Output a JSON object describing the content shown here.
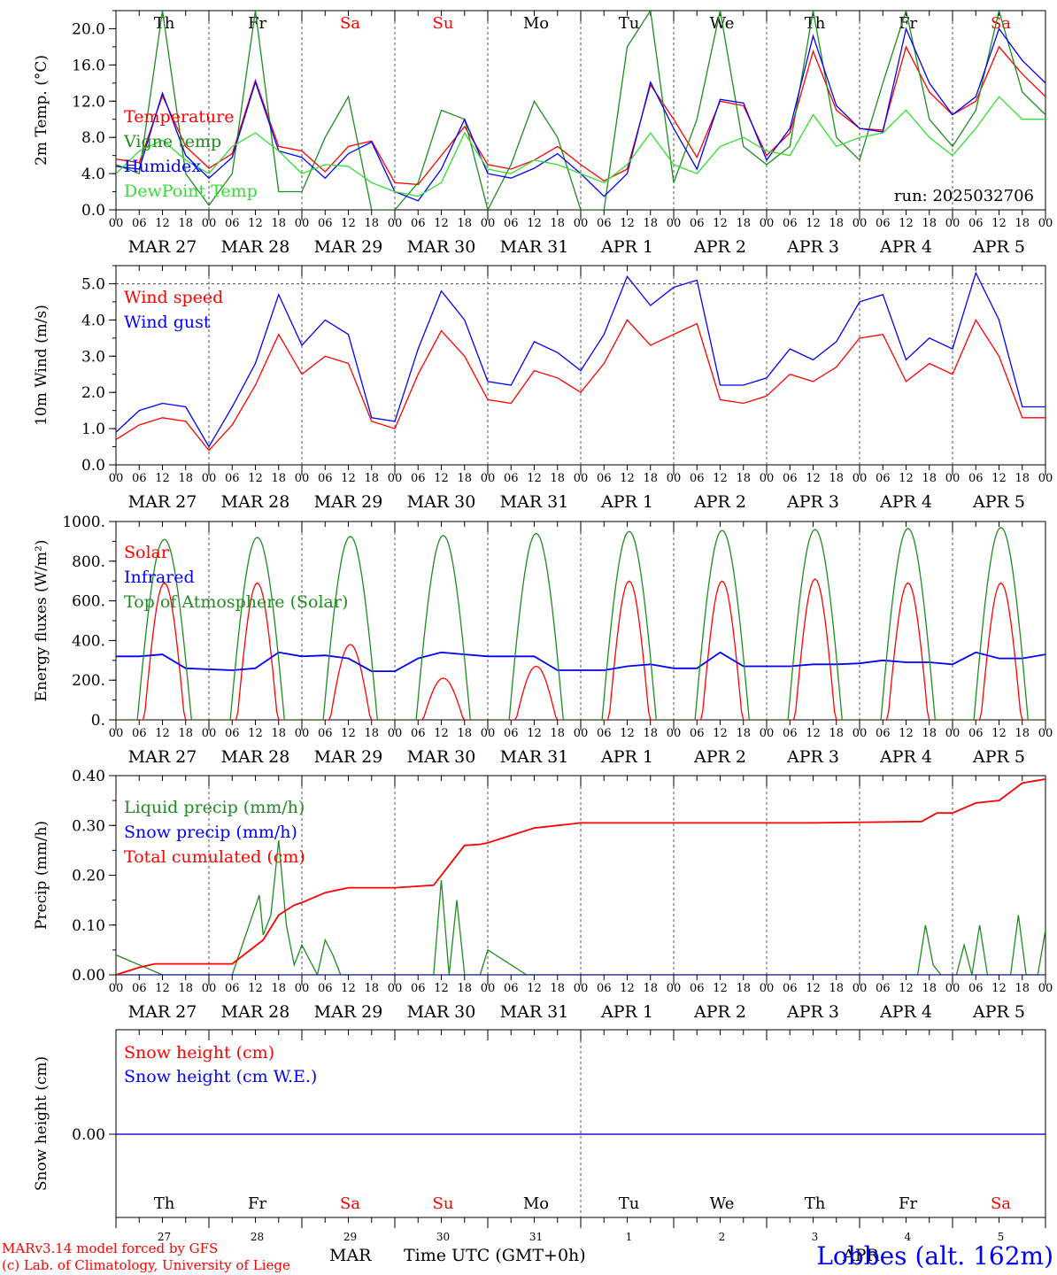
{
  "footer": {
    "model_line": "MARv3.14 model forced by GFS",
    "copyright_line": "(c) Lab. of Climatology, University of Liege",
    "month_label": "MAR",
    "month_label2": "APR",
    "xaxis_title": "Time UTC (GMT+0h)",
    "station": "Lobbes (alt. 162m)"
  },
  "colors": {
    "red": "#ff0000",
    "green": "#1f8c1f",
    "blue": "#0000ff",
    "lightgreen": "#33dd33",
    "grid": "#555555"
  },
  "time_axis": {
    "hour_ticks": [
      "00",
      "06",
      "12",
      "18"
    ],
    "day_labels": [
      "MAR 27",
      "MAR 28",
      "MAR 29",
      "MAR 30",
      "MAR 31",
      "APR  1",
      "APR  2",
      "APR  3",
      "APR  4",
      "APR  5"
    ],
    "weekdays": [
      {
        "label": "Th",
        "color": "#000000"
      },
      {
        "label": "Fr",
        "color": "#000000"
      },
      {
        "label": "Sa",
        "color": "#ff0000"
      },
      {
        "label": "Su",
        "color": "#ff0000"
      },
      {
        "label": "Mo",
        "color": "#000000"
      },
      {
        "label": "Tu",
        "color": "#000000"
      },
      {
        "label": "We",
        "color": "#000000"
      },
      {
        "label": "Th",
        "color": "#000000"
      },
      {
        "label": "Fr",
        "color": "#000000"
      },
      {
        "label": "Sa",
        "color": "#ff0000"
      }
    ],
    "day_numbers": [
      "27",
      "28",
      "29",
      "30",
      "31",
      "1",
      "2",
      "3",
      "4",
      "5"
    ]
  },
  "chart_data": [
    {
      "type": "line",
      "ylabel": "2m Temp. (°C)",
      "ylim": [
        0,
        22
      ],
      "yticks": [
        "0.0",
        "4.0",
        "8.0",
        "12.0",
        "16.0",
        "20.0"
      ],
      "ytick_values": [
        0,
        4,
        8,
        12,
        16,
        20
      ],
      "annotation": "run: 2025032706",
      "x_unit": "hours since MAR 27 00 UTC",
      "series": [
        {
          "name": "Temperature",
          "color": "#ff0000",
          "x": [
            0,
            6,
            12,
            18,
            24,
            30,
            36,
            42,
            48,
            54,
            60,
            66,
            72,
            78,
            84,
            90,
            96,
            102,
            108,
            114,
            120,
            126,
            132,
            138,
            144,
            150,
            156,
            162,
            168,
            174,
            180,
            186,
            192,
            198,
            204,
            210,
            216,
            222,
            228,
            234,
            240
          ],
          "y": [
            5.6,
            5.2,
            12.6,
            7.0,
            4.6,
            6.2,
            14.3,
            7.0,
            6.5,
            4.2,
            7.0,
            7.6,
            3.0,
            2.8,
            6.0,
            9.2,
            5.0,
            4.5,
            5.5,
            7.0,
            5.0,
            3.2,
            4.5,
            13.8,
            10.0,
            5.8,
            12.0,
            11.5,
            6.0,
            8.5,
            17.5,
            11.0,
            9.0,
            8.8,
            18.0,
            13.0,
            10.5,
            12.0,
            18.0,
            15.0,
            12.5
          ]
        },
        {
          "name": "Vigne temp",
          "color": "#1f8c1f",
          "x": [
            0,
            6,
            12,
            18,
            24,
            30,
            36,
            42,
            48,
            54,
            60,
            66,
            72,
            78,
            84,
            90,
            96,
            102,
            108,
            114,
            120,
            126,
            132,
            138,
            144,
            150,
            156,
            162,
            168,
            174,
            180,
            186,
            192,
            198,
            204,
            210,
            216,
            222,
            228,
            234,
            240
          ],
          "y": [
            5.0,
            4.0,
            22.0,
            4.0,
            0.5,
            4.0,
            22.0,
            2.0,
            2.0,
            8.0,
            12.5,
            0.0,
            0.0,
            3.0,
            11.0,
            10.0,
            0.0,
            5.0,
            12.0,
            8.0,
            0.0,
            0.0,
            18.0,
            22.0,
            3.0,
            10.0,
            22.0,
            7.0,
            5.0,
            7.0,
            22.0,
            8.0,
            5.5,
            14.0,
            22.0,
            10.0,
            7.0,
            11.0,
            22.0,
            13.0,
            10.5
          ]
        },
        {
          "name": "Humidex",
          "color": "#0000ff",
          "x": [
            0,
            6,
            12,
            18,
            24,
            30,
            36,
            42,
            48,
            54,
            60,
            66,
            72,
            78,
            84,
            90,
            96,
            102,
            108,
            114,
            120,
            126,
            132,
            138,
            144,
            150,
            156,
            162,
            168,
            174,
            180,
            186,
            192,
            198,
            204,
            210,
            216,
            222,
            228,
            234,
            240
          ],
          "y": [
            4.8,
            4.5,
            12.9,
            6.0,
            3.5,
            5.8,
            14.1,
            6.5,
            5.8,
            3.5,
            6.2,
            7.5,
            2.0,
            1.0,
            4.5,
            10.0,
            4.0,
            3.5,
            4.6,
            6.2,
            4.0,
            1.5,
            4.0,
            14.1,
            9.0,
            4.5,
            12.2,
            11.8,
            5.5,
            9.0,
            19.2,
            11.5,
            9.0,
            8.6,
            20.0,
            14.0,
            10.5,
            12.5,
            20.0,
            16.5,
            14.0
          ]
        },
        {
          "name": "DewPoint Temp",
          "color": "#33dd33",
          "x": [
            0,
            6,
            12,
            18,
            24,
            30,
            36,
            42,
            48,
            54,
            60,
            66,
            72,
            78,
            84,
            90,
            96,
            102,
            108,
            114,
            120,
            126,
            132,
            138,
            144,
            150,
            156,
            162,
            168,
            174,
            180,
            186,
            192,
            198,
            204,
            210,
            216,
            222,
            228,
            234,
            240
          ],
          "y": [
            4.0,
            6.5,
            7.7,
            5.5,
            4.0,
            7.0,
            8.5,
            6.5,
            4.0,
            5.0,
            4.8,
            3.0,
            2.0,
            1.5,
            3.0,
            8.5,
            4.5,
            4.0,
            5.5,
            5.0,
            4.0,
            3.0,
            5.0,
            8.5,
            5.0,
            4.0,
            7.0,
            8.0,
            6.5,
            6.0,
            10.5,
            7.0,
            8.0,
            8.5,
            11.0,
            8.0,
            6.0,
            9.0,
            12.5,
            10.0,
            10.0
          ]
        }
      ]
    },
    {
      "type": "line",
      "ylabel": "10m Wind (m/s)",
      "ylim": [
        0,
        5.5
      ],
      "yticks": [
        "0.0",
        "1.0",
        "2.0",
        "3.0",
        "4.0",
        "5.0"
      ],
      "ytick_values": [
        0,
        1,
        2,
        3,
        4,
        5
      ],
      "reference_line": 5.0,
      "series": [
        {
          "name": "Wind speed",
          "color": "#ff0000",
          "x": [
            0,
            6,
            12,
            18,
            24,
            30,
            36,
            42,
            48,
            54,
            60,
            66,
            72,
            78,
            84,
            90,
            96,
            102,
            108,
            114,
            120,
            126,
            132,
            138,
            144,
            150,
            156,
            162,
            168,
            174,
            180,
            186,
            192,
            198,
            204,
            210,
            216,
            222,
            228,
            234,
            240
          ],
          "y": [
            0.7,
            1.1,
            1.3,
            1.2,
            0.4,
            1.1,
            2.2,
            3.6,
            2.5,
            3.0,
            2.8,
            1.2,
            1.0,
            2.5,
            3.7,
            3.0,
            1.8,
            1.7,
            2.6,
            2.4,
            2.0,
            2.8,
            4.0,
            3.3,
            3.6,
            3.9,
            1.8,
            1.7,
            1.9,
            2.5,
            2.3,
            2.7,
            3.5,
            3.6,
            2.3,
            2.8,
            2.5,
            4.0,
            3.0,
            1.3,
            1.3
          ]
        },
        {
          "name": "Wind gust",
          "color": "#0000ff",
          "x": [
            0,
            6,
            12,
            18,
            24,
            30,
            36,
            42,
            48,
            54,
            60,
            66,
            72,
            78,
            84,
            90,
            96,
            102,
            108,
            114,
            120,
            126,
            132,
            138,
            144,
            150,
            156,
            162,
            168,
            174,
            180,
            186,
            192,
            198,
            204,
            210,
            216,
            222,
            228,
            234,
            240
          ],
          "y": [
            0.9,
            1.5,
            1.7,
            1.6,
            0.5,
            1.6,
            2.8,
            4.7,
            3.3,
            4.0,
            3.6,
            1.3,
            1.2,
            3.2,
            4.8,
            4.0,
            2.3,
            2.2,
            3.4,
            3.1,
            2.6,
            3.6,
            5.2,
            4.4,
            4.9,
            5.1,
            2.2,
            2.2,
            2.4,
            3.2,
            2.9,
            3.4,
            4.5,
            4.7,
            2.9,
            3.5,
            3.2,
            5.3,
            4.0,
            1.6,
            1.6
          ]
        }
      ]
    },
    {
      "type": "line",
      "ylabel": "Energy fluxes (W/m²)",
      "ylim": [
        0,
        1000
      ],
      "yticks": [
        "0.",
        "200.",
        "400.",
        "600.",
        "800.",
        "1000."
      ],
      "ytick_values": [
        0,
        200,
        400,
        600,
        800,
        1000
      ],
      "series": [
        {
          "name": "Solar",
          "color": "#ff0000",
          "peaks": [
            690,
            690,
            380,
            210,
            270,
            700,
            700,
            710,
            690,
            690
          ]
        },
        {
          "name": "Infrared",
          "color": "#0000ff",
          "x": [
            0,
            6,
            12,
            18,
            24,
            30,
            36,
            42,
            48,
            54,
            60,
            66,
            72,
            78,
            84,
            90,
            96,
            102,
            108,
            114,
            120,
            126,
            132,
            138,
            144,
            150,
            156,
            162,
            168,
            174,
            180,
            186,
            192,
            198,
            204,
            210,
            216,
            222,
            228,
            234,
            240
          ],
          "y": [
            320,
            320,
            330,
            260,
            255,
            250,
            260,
            340,
            320,
            325,
            310,
            245,
            245,
            310,
            340,
            330,
            320,
            320,
            320,
            250,
            250,
            250,
            270,
            280,
            260,
            260,
            340,
            270,
            270,
            270,
            280,
            280,
            285,
            300,
            290,
            290,
            280,
            340,
            310,
            310,
            330
          ]
        },
        {
          "name": "Top of Atmosphere (Solar)",
          "color": "#1f8c1f",
          "peaks": [
            910,
            920,
            925,
            930,
            940,
            950,
            955,
            960,
            965,
            970
          ]
        }
      ]
    },
    {
      "type": "line",
      "ylabel": "Precip (mm/h)",
      "ylim": [
        0,
        0.4
      ],
      "yticks": [
        "0.00",
        "0.10",
        "0.20",
        "0.30",
        "0.40"
      ],
      "ytick_values": [
        0,
        0.1,
        0.2,
        0.3,
        0.4
      ],
      "series": [
        {
          "name": "Liquid precip (mm/h)",
          "color": "#1f8c1f",
          "x": [
            0,
            3,
            6,
            9,
            12,
            30,
            37,
            38,
            40,
            42,
            44,
            46,
            48,
            52,
            54,
            56,
            58,
            62,
            72,
            82,
            84,
            86,
            88,
            90,
            94,
            96,
            98,
            100,
            106,
            108,
            110,
            120,
            207,
            209,
            211,
            213,
            217,
            219,
            221,
            223,
            225,
            227,
            231,
            233,
            235,
            238,
            240
          ],
          "y": [
            0.04,
            0.03,
            0.02,
            0.01,
            0.0,
            0.0,
            0.16,
            0.08,
            0.12,
            0.27,
            0.1,
            0.02,
            0.06,
            0.0,
            0.07,
            0.04,
            0.0,
            0.0,
            0.0,
            0.0,
            0.19,
            0.0,
            0.15,
            0.0,
            0.0,
            0.05,
            0.04,
            0.03,
            0.0,
            0.0,
            0.0,
            0.0,
            0.0,
            0.1,
            0.02,
            0.0,
            0.0,
            0.06,
            0.0,
            0.1,
            0.0,
            0.0,
            0.0,
            0.12,
            0.0,
            0.0,
            0.09
          ]
        },
        {
          "name": "Snow precip (mm/h)",
          "color": "#0000ff",
          "x": [
            0,
            240
          ],
          "y": [
            0,
            0
          ]
        },
        {
          "name": "Total cumulated (cm)",
          "color": "#ff0000",
          "x": [
            0,
            6,
            10,
            30,
            38,
            42,
            46,
            48,
            54,
            60,
            72,
            82,
            86,
            90,
            94,
            96,
            102,
            108,
            114,
            120,
            150,
            180,
            208,
            212,
            216,
            222,
            228,
            234,
            240
          ],
          "y": [
            0.0,
            0.015,
            0.022,
            0.022,
            0.07,
            0.12,
            0.14,
            0.145,
            0.165,
            0.175,
            0.175,
            0.18,
            0.22,
            0.26,
            0.262,
            0.265,
            0.28,
            0.295,
            0.3,
            0.305,
            0.305,
            0.305,
            0.308,
            0.325,
            0.325,
            0.345,
            0.35,
            0.385,
            0.393
          ]
        }
      ]
    },
    {
      "type": "line",
      "ylabel": "Snow height (cm)",
      "yticks": [
        "0.00"
      ],
      "ytick_values": [
        0
      ],
      "series": [
        {
          "name": "Snow height (cm)",
          "color": "#ff0000",
          "x": [
            0,
            240
          ],
          "y": [
            0,
            0
          ]
        },
        {
          "name": "Snow height (cm W.E.)",
          "color": "#0000ff",
          "x": [
            0,
            240
          ],
          "y": [
            0,
            0
          ]
        }
      ]
    }
  ]
}
